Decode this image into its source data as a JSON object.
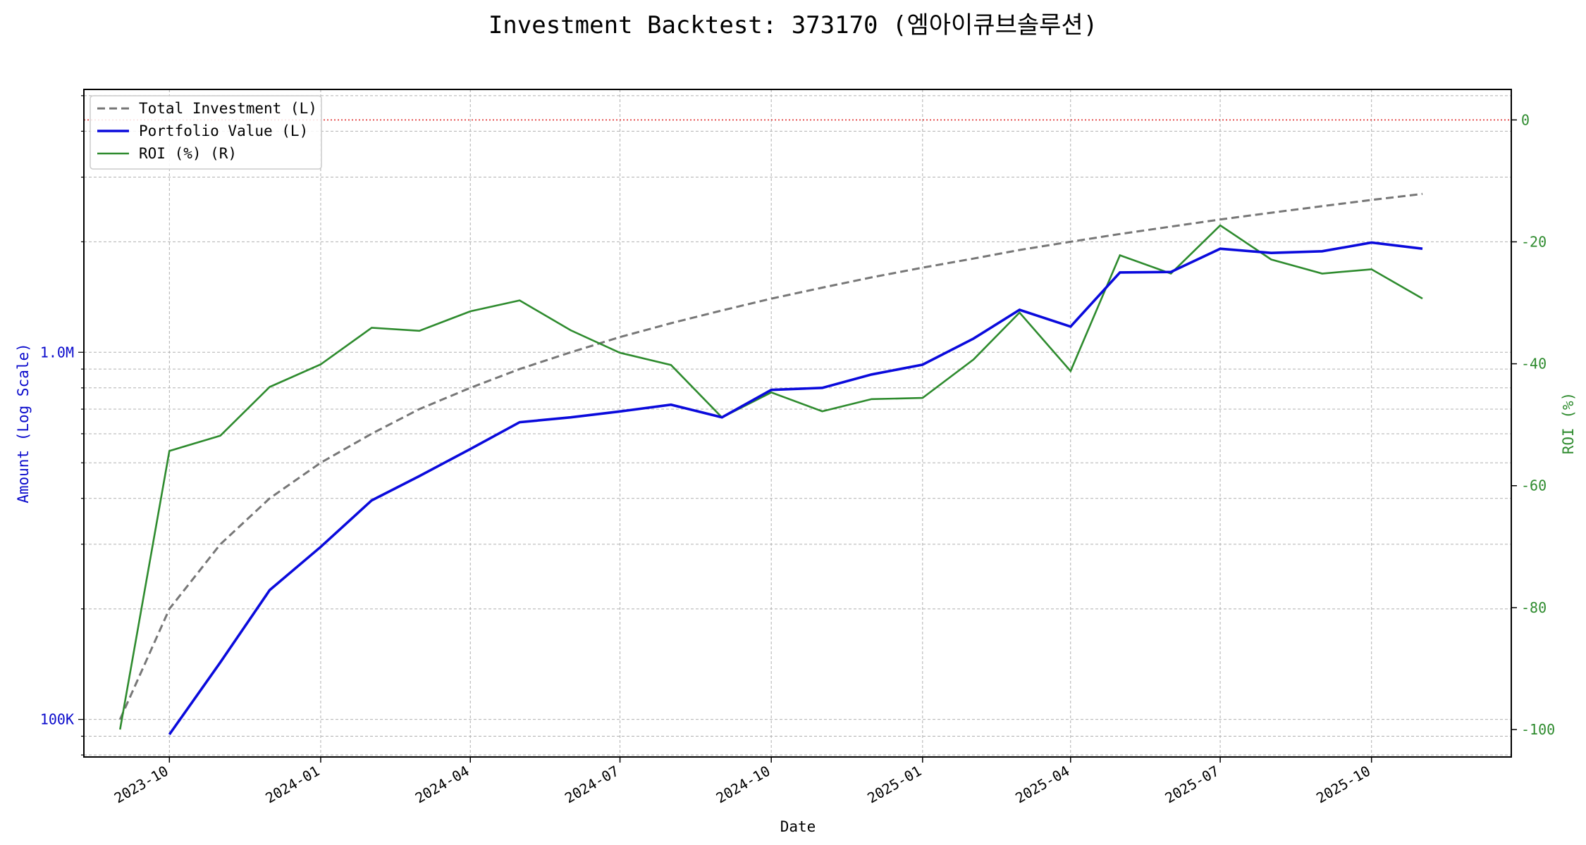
{
  "chart_data": {
    "type": "line",
    "title": "Investment Backtest: 373170 (엠아이큐브솔루션)",
    "xlabel": "Date",
    "ylabel_left": "Amount (Log Scale)",
    "ylabel_right": "ROI (%)",
    "left_scale": "log",
    "left_ylim": [
      79000,
      5200000
    ],
    "right_ylim": [
      -104.5,
      5
    ],
    "x_range": [
      "2023-08-10",
      "2025-12-25"
    ],
    "grid": true,
    "legend_position": "top-left",
    "x_ticks": [
      "2023-10",
      "2024-01",
      "2024-04",
      "2024-07",
      "2024-10",
      "2025-01",
      "2025-04",
      "2025-07",
      "2025-10"
    ],
    "left_ticks": [
      {
        "value": 100000,
        "label": "100K"
      },
      {
        "value": 1000000,
        "label": "1.0M"
      }
    ],
    "right_ticks": [
      0,
      -20,
      -40,
      -60,
      -80,
      -100
    ],
    "reference_line": {
      "axis": "right",
      "value": 0,
      "color": "#e03030",
      "style": "dotted"
    },
    "colors": {
      "investment": "#777777",
      "portfolio": "#0a0adc",
      "roi": "#2e8b2e",
      "left_axis": "#0a0acc",
      "right_axis": "#2e8b2e"
    },
    "dates": [
      "2023-09-01",
      "2023-10-01",
      "2023-11-01",
      "2023-12-01",
      "2024-01-01",
      "2024-02-01",
      "2024-03-01",
      "2024-04-01",
      "2024-05-01",
      "2024-06-01",
      "2024-07-01",
      "2024-08-01",
      "2024-09-01",
      "2024-10-01",
      "2024-11-01",
      "2024-12-01",
      "2025-01-01",
      "2025-02-01",
      "2025-03-01",
      "2025-04-01",
      "2025-05-01",
      "2025-06-01",
      "2025-07-01",
      "2025-08-01",
      "2025-09-01",
      "2025-10-01",
      "2025-11-01"
    ],
    "series": [
      {
        "name": "Total Investment (L)",
        "axis": "left",
        "style": "dashed",
        "color": "#777777",
        "values": [
          100000,
          200000,
          300000,
          400000,
          500000,
          600000,
          700000,
          800000,
          900000,
          1000000,
          1100000,
          1200000,
          1300000,
          1400000,
          1500000,
          1600000,
          1700000,
          1800000,
          1900000,
          2000000,
          2100000,
          2200000,
          2300000,
          2400000,
          2500000,
          2600000,
          2700000
        ]
      },
      {
        "name": "Portfolio Value (L)",
        "axis": "left",
        "style": "solid",
        "color": "#0a0adc",
        "values": [
          null,
          91000,
          143000,
          225000,
          295000,
          395000,
          460000,
          545000,
          645000,
          665000,
          690000,
          720000,
          665000,
          790000,
          800000,
          870000,
          925000,
          1090000,
          1305000,
          1175000,
          1650000,
          1655000,
          1915000,
          1865000,
          1885000,
          1990000,
          1915000
        ]
      },
      {
        "name": "ROI (%) (R)",
        "axis": "right",
        "style": "solid",
        "color": "#2e8b2e",
        "values": [
          -100,
          -54.3,
          -51.8,
          -43.8,
          -40.1,
          -34.1,
          -34.6,
          -31.4,
          -29.6,
          -34.5,
          -38.2,
          -40.2,
          -48.8,
          -44.7,
          -47.8,
          -45.8,
          -45.6,
          -39.3,
          -31.6,
          -41.2,
          -22.2,
          -25.2,
          -17.3,
          -22.9,
          -25.2,
          -24.5,
          -29.3
        ]
      }
    ]
  }
}
